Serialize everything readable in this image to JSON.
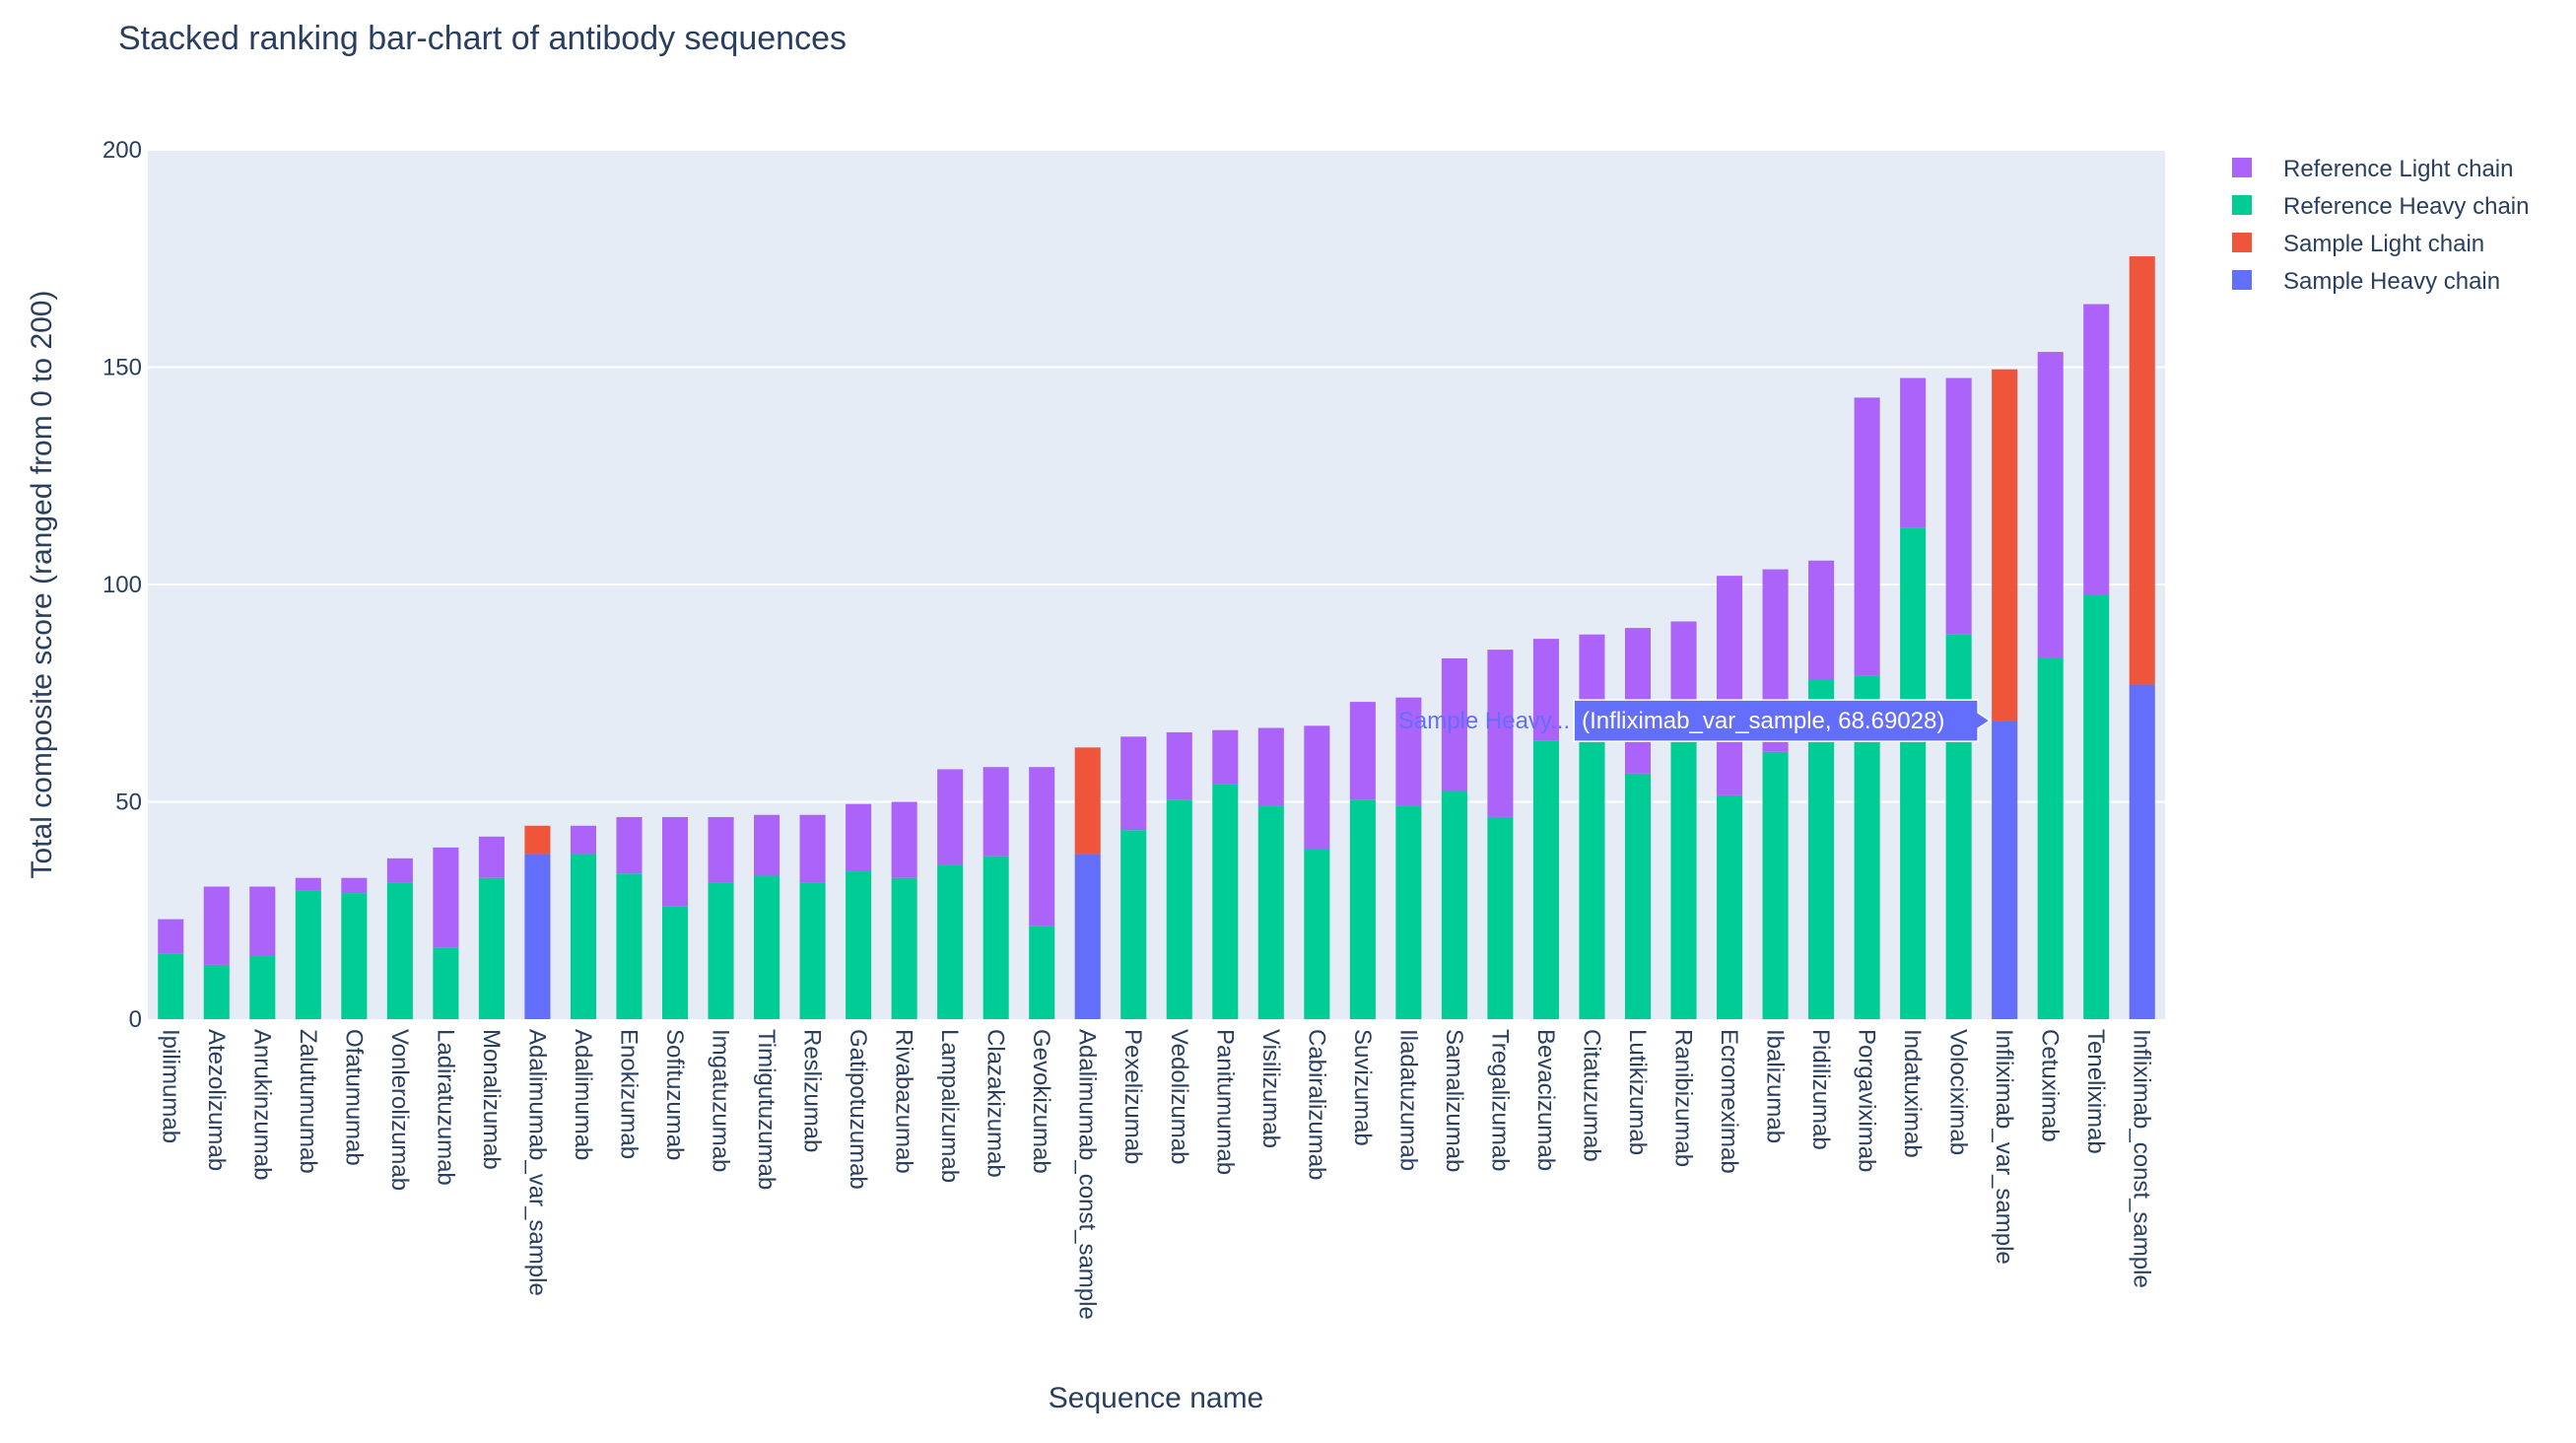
{
  "chart_data": {
    "type": "bar",
    "barmode": "stack",
    "title": "Stacked ranking bar-chart of antibody sequences",
    "xlabel": "Sequence name",
    "ylabel": "Total composite score (ranged from 0 to 200)",
    "ylim": [
      0,
      200
    ],
    "yticks": [
      0,
      50,
      100,
      150,
      200
    ],
    "grid": true,
    "legend_position": "top-right",
    "categories": [
      "Ipilimumab",
      "Atezolizumab",
      "Anrukinzumab",
      "Zalutumumab",
      "Ofatumumab",
      "Vonlerolizumab",
      "Ladiratuzumab",
      "Monalizumab",
      "Adalimumab_var_sample",
      "Adalimumab",
      "Enokizumab",
      "Sofituzumab",
      "Imgatuzumab",
      "Timigutuzumab",
      "Reslizumab",
      "Gatipotuzumab",
      "Rivabazumab",
      "Lampalizumab",
      "Clazakizumab",
      "Gevokizumab",
      "Adalimumab_const_sample",
      "Pexelizumab",
      "Vedolizumab",
      "Panitumumab",
      "Visilizumab",
      "Cabiralizumab",
      "Suvizumab",
      "Iladatuzumab",
      "Samalizumab",
      "Tregalizumab",
      "Bevacizumab",
      "Citatuzumab",
      "Lutikizumab",
      "Ranibizumab",
      "Ecromeximab",
      "Ibalizumab",
      "Pidilizumab",
      "Porgaviximab",
      "Indatuximab",
      "Volociximab",
      "Infliximab_var_sample",
      "Cetuximab",
      "Teneliximab",
      "Infliximab_const_sample"
    ],
    "series": [
      {
        "name": "Sample Heavy chain",
        "color": "#636efa",
        "values": [
          0,
          0,
          0,
          0,
          0,
          0,
          0,
          0,
          38,
          0,
          0,
          0,
          0,
          0,
          0,
          0,
          0,
          0,
          0,
          0,
          38,
          0,
          0,
          0,
          0,
          0,
          0,
          0,
          0,
          0,
          0,
          0,
          0,
          0,
          0,
          0,
          0,
          0,
          0,
          0,
          68.69,
          0,
          0,
          77
        ]
      },
      {
        "name": "Sample Light chain",
        "color": "#ef553b",
        "values": [
          0,
          0,
          0,
          0,
          0,
          0,
          0,
          0,
          6.5,
          0,
          0,
          0,
          0,
          0,
          0,
          0,
          0,
          0,
          0,
          0,
          24.5,
          0,
          0,
          0,
          0,
          0,
          0,
          0,
          0,
          0,
          0,
          0,
          0,
          0,
          0,
          0,
          0,
          0,
          0,
          0,
          80.81,
          0,
          0,
          98.5
        ]
      },
      {
        "name": "Reference Heavy chain",
        "color": "#00cc96",
        "values": [
          15,
          12.5,
          14.5,
          29.5,
          29,
          31.5,
          16.5,
          32.5,
          0,
          38,
          33.5,
          26,
          31.5,
          33,
          31.5,
          34,
          32.5,
          35.5,
          37.5,
          21.5,
          0,
          43.5,
          50.5,
          54,
          49,
          39,
          50.5,
          49,
          52.5,
          46.5,
          64,
          64,
          56.5,
          64,
          51.5,
          61.5,
          78,
          79,
          113,
          88.5,
          0,
          83,
          97.5,
          0
        ]
      },
      {
        "name": "Reference Light chain",
        "color": "#ab63fa",
        "values": [
          8,
          18,
          16,
          3,
          3.5,
          5.5,
          23,
          9.5,
          0,
          6.5,
          13,
          20.5,
          15,
          14,
          15.5,
          15.5,
          17.5,
          22,
          20.5,
          36.5,
          0,
          21.5,
          15.5,
          12.5,
          18,
          28.5,
          22.5,
          25,
          30.5,
          38.5,
          23.5,
          24.5,
          33.5,
          27.5,
          50.5,
          42,
          27.5,
          64,
          34.5,
          59,
          0,
          70.5,
          67,
          0
        ]
      }
    ],
    "legend": [
      "Reference Light chain",
      "Reference Heavy chain",
      "Sample Light chain",
      "Sample Heavy chain"
    ],
    "hover": {
      "name": "Sample Heavy...",
      "text": "(Infliximab_var_sample, 68.69028)",
      "category": "Infliximab_var_sample",
      "value": 68.69028,
      "color": "#636efa"
    }
  }
}
